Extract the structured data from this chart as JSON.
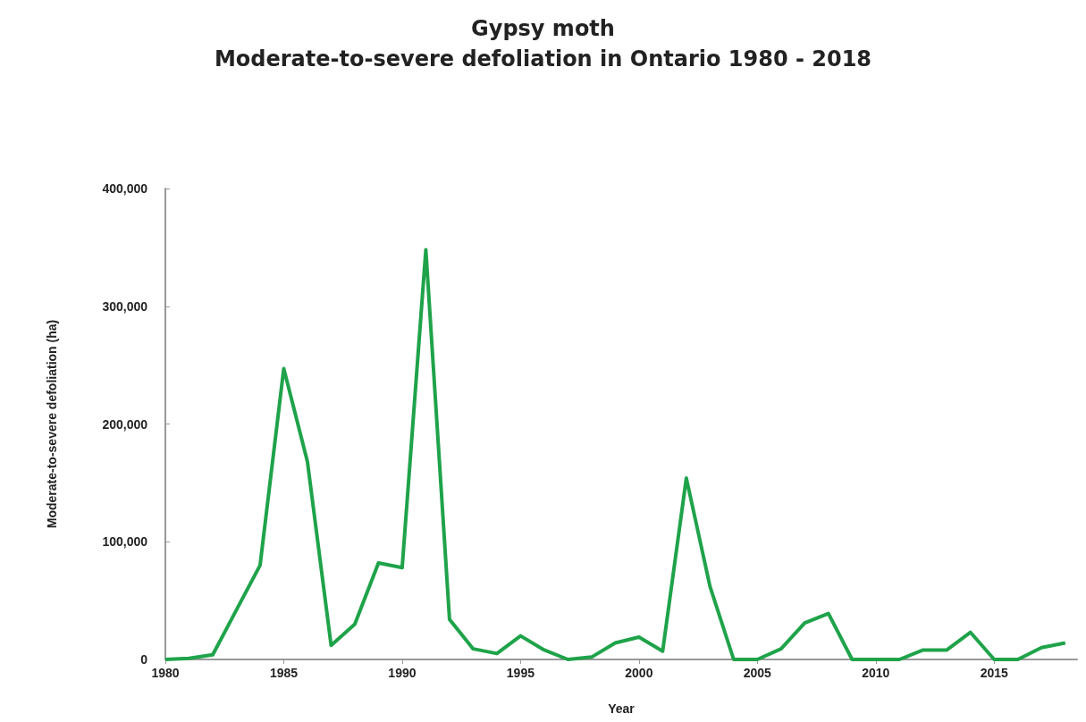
{
  "chart_data": {
    "type": "line",
    "title": "Gypsy moth\nModerate-to-severe defoliation in Ontario 1980 - 2018",
    "xlabel": "Year",
    "ylabel": "Moderate-to-severe defoliation (ha)",
    "x": [
      1980,
      1981,
      1982,
      1983,
      1984,
      1985,
      1986,
      1987,
      1988,
      1989,
      1990,
      1991,
      1992,
      1993,
      1994,
      1995,
      1996,
      1997,
      1998,
      1999,
      2000,
      2001,
      2002,
      2003,
      2004,
      2005,
      2006,
      2007,
      2008,
      2009,
      2010,
      2011,
      2012,
      2013,
      2014,
      2015,
      2016,
      2017,
      2018
    ],
    "series": [
      {
        "color": "#1fa34a",
        "values": [
          0,
          1000,
          4000,
          42000,
          80000,
          247000,
          168000,
          12000,
          30000,
          82000,
          78000,
          348000,
          34000,
          9000,
          5000,
          20000,
          8000,
          0,
          2000,
          14000,
          19000,
          7000,
          154000,
          62000,
          0,
          0,
          9000,
          31000,
          39000,
          0,
          0,
          0,
          8000,
          8000,
          23000,
          0,
          0,
          10000,
          14000
        ]
      }
    ],
    "xlim": [
      1980,
      2018.5
    ],
    "xticks": [
      1980,
      1985,
      1990,
      1995,
      2000,
      2005,
      2010,
      2015
    ],
    "ylim": [
      0,
      400000
    ],
    "yticks": [
      {
        "value": 0,
        "label": "0"
      },
      {
        "value": 100000,
        "label": "100,000"
      },
      {
        "value": 200000,
        "label": "200,000"
      },
      {
        "value": 300000,
        "label": "300,000"
      },
      {
        "value": 400000,
        "label": "400,000"
      }
    ],
    "grid": false,
    "marker": "none",
    "line_style": "solid"
  }
}
